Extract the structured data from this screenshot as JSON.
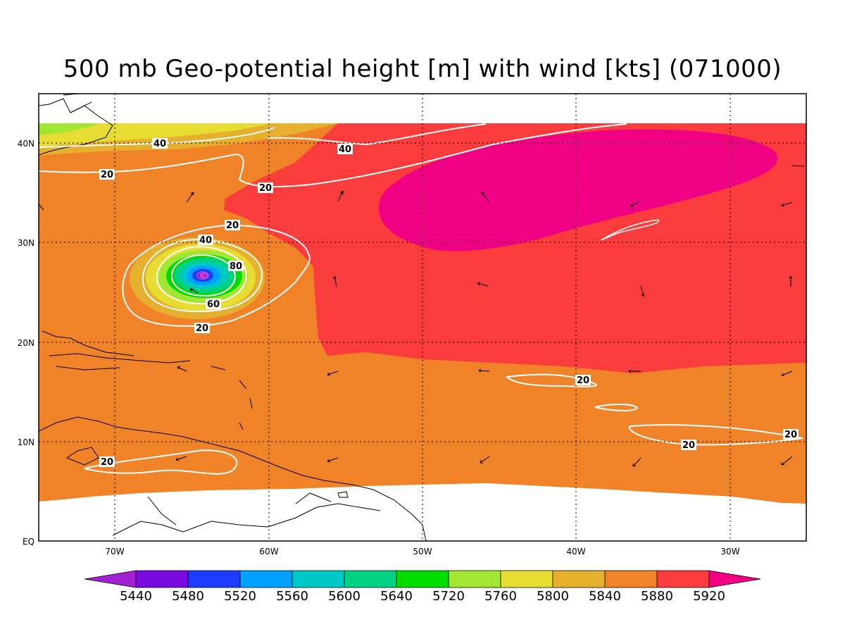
{
  "title": "500 mb Geo-potential height [m] with wind [kts] (071000)",
  "colors": {
    "c5440": "#a21fd4",
    "c5480": "#7a0ae0",
    "c5520": "#1e3cff",
    "c5560": "#00a0ff",
    "c5600": "#00c8c8",
    "c5640": "#00d282",
    "c5720": "#00dc00",
    "c5760": "#a0e632",
    "c5800": "#e6dc32",
    "c5840": "#e6af2d",
    "c5880": "#f08228",
    "c5920": "#fa3c3c",
    "above": "#f00082"
  },
  "lat_labels": [
    "40N",
    "30N",
    "20N",
    "10N",
    "EQ"
  ],
  "lon_labels": [
    "70W",
    "60W",
    "50W",
    "40W",
    "30W"
  ],
  "colorbar": {
    "labels": [
      "5440",
      "5480",
      "5520",
      "5560",
      "5600",
      "5640",
      "5720",
      "5760",
      "5800",
      "5840",
      "5880",
      "5920"
    ]
  },
  "contour_labels": {
    "w40_nw": "40",
    "w40_n": "40",
    "w20_west": "20",
    "w20_mid": "20",
    "w20_ring": "20",
    "w40_ring": "40",
    "w80_ring": "80",
    "w60_ring": "60",
    "w20_ring_s": "20",
    "w20_east": "20",
    "w20_se1": "20",
    "w20_se2": "20",
    "w20_sw": "20"
  }
}
